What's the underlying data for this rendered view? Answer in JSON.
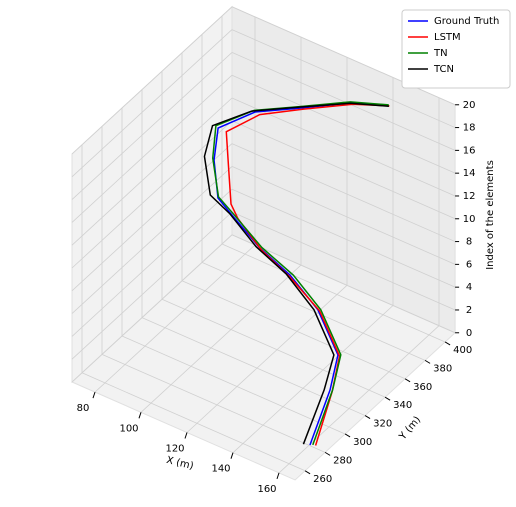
{
  "chart_data": {
    "type": "line3d",
    "xlabel": "X (m)",
    "ylabel": "Y (m)",
    "zlabel": "Index of the elements",
    "xlim": [
      70,
      167
    ],
    "ylim": [
      250,
      410
    ],
    "zlim": [
      0,
      20
    ],
    "xticks": [
      80,
      100,
      120,
      140,
      160
    ],
    "yticks": [
      260,
      280,
      300,
      320,
      340,
      360,
      380,
      400
    ],
    "zticks": [
      0,
      2,
      4,
      6,
      8,
      10,
      12,
      14,
      16,
      18,
      20
    ],
    "grid": true,
    "legend": "upper right",
    "series": [
      {
        "name": "Ground Truth",
        "color": "#0000ff",
        "x": [
          160.2,
          155.8,
          154.2,
          141.2,
          125.5,
          111.6,
          100.1,
          94.2,
          95.5,
          97.4,
          106.8,
          120.6,
          134.8,
          147.6
        ],
        "y": [
          280.5,
          310.7,
          322.3,
          332.2,
          340.4,
          342.2,
          340.7,
          340.3,
          333.4,
          333.1,
          348.4,
          361.6,
          379,
          387.5
        ],
        "z": [
          0,
          2,
          4,
          6,
          7,
          8,
          10,
          11,
          15,
          18,
          19,
          19.5,
          19.8,
          20
        ]
      },
      {
        "name": "LSTM",
        "color": "#ff0000",
        "x": [
          162,
          157,
          155,
          142,
          126,
          113,
          103,
          100,
          101.5,
          101,
          109,
          122,
          136,
          148
        ],
        "y": [
          282,
          310,
          322,
          332,
          339,
          341,
          340,
          340,
          334,
          333,
          348,
          362,
          379,
          388
        ],
        "z": [
          0,
          2,
          4,
          6,
          7,
          8,
          10,
          11,
          15,
          18,
          19,
          19.5,
          19.8,
          20
        ]
      },
      {
        "name": "TN",
        "color": "#008000",
        "x": [
          161,
          156.5,
          155,
          142,
          126.5,
          112,
          100.5,
          94,
          94.5,
          96,
          106,
          120,
          134.5,
          147.5
        ],
        "y": [
          281.5,
          311.7,
          323.3,
          333.2,
          341.4,
          343.2,
          341.7,
          341.3,
          334.4,
          334.1,
          349.4,
          362.6,
          380,
          388.5
        ],
        "z": [
          0,
          2,
          4,
          6,
          7,
          8,
          10,
          11,
          15,
          18,
          19,
          19.5,
          19.8,
          20
        ]
      },
      {
        "name": "TCN",
        "color": "#000000",
        "x": [
          158,
          154,
          153,
          140,
          124,
          110,
          99,
          91,
          91.5,
          95,
          105.5,
          120,
          135,
          148
        ],
        "y": [
          279,
          309,
          321,
          331,
          340,
          342,
          341,
          340,
          333,
          333,
          348,
          362,
          379,
          387.5
        ],
        "z": [
          0,
          2,
          4,
          6,
          7,
          8,
          10,
          11,
          15,
          18,
          19,
          19.5,
          19.8,
          20
        ]
      }
    ]
  }
}
